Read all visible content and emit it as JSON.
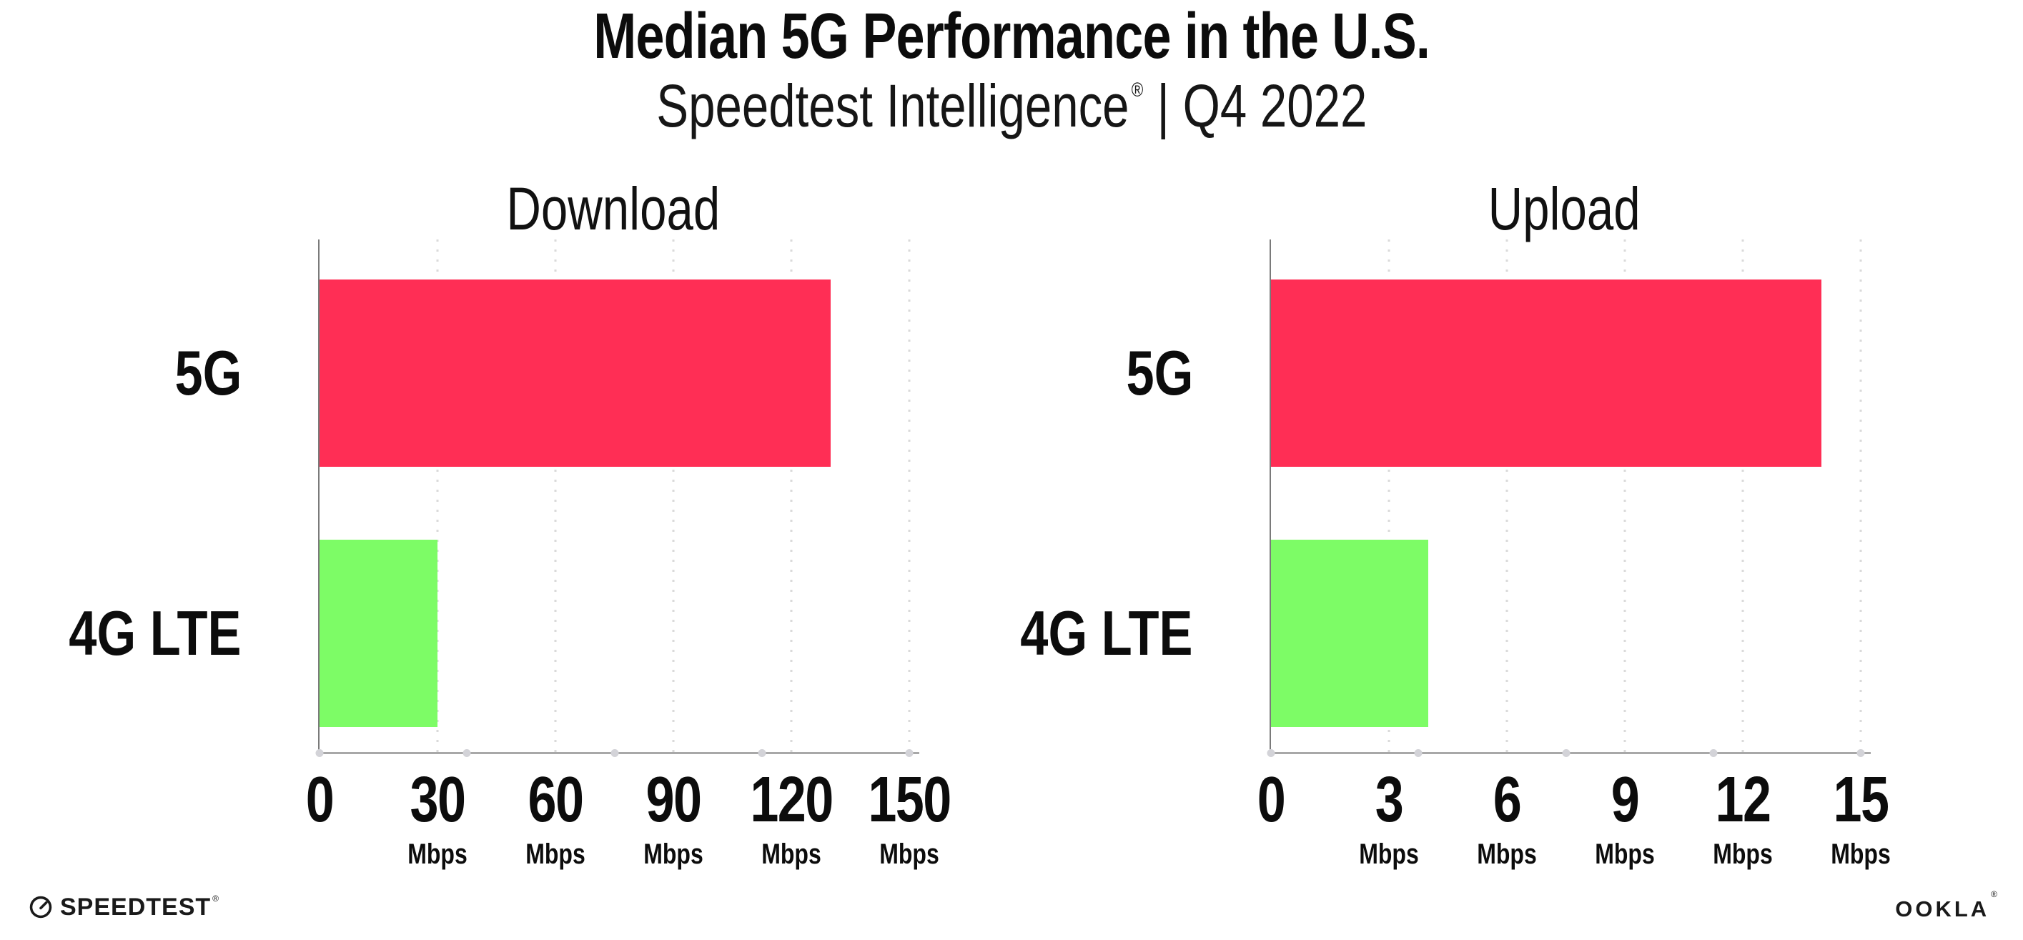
{
  "header": {
    "title": "Median 5G Performance in the U.S.",
    "subtitle_brand": "Speedtest Intelligence",
    "subtitle_reg": "®",
    "subtitle_rest": "| Q4 2022"
  },
  "chart_data": [
    {
      "type": "bar",
      "orientation": "horizontal",
      "title": "Download",
      "categories": [
        "5G",
        "4G LTE"
      ],
      "values": [
        130,
        30
      ],
      "unit": "Mbps",
      "xlabel": "Mbps",
      "xlim": [
        0,
        150
      ],
      "ticks": [
        0,
        30,
        60,
        90,
        120,
        150
      ],
      "grid": "vertical dotted gridlines at each tick",
      "legend": "none",
      "bar_colors": [
        "#ff2e55",
        "#7dfc66"
      ]
    },
    {
      "type": "bar",
      "orientation": "horizontal",
      "title": "Upload",
      "categories": [
        "5G",
        "4G LTE"
      ],
      "values": [
        14,
        4
      ],
      "unit": "Mbps",
      "xlabel": "Mbps",
      "xlim": [
        0,
        15
      ],
      "ticks": [
        0,
        3,
        6,
        9,
        12,
        15
      ],
      "grid": "vertical dotted gridlines at each tick",
      "legend": "none",
      "bar_colors": [
        "#ff2e55",
        "#7dfc66"
      ]
    }
  ],
  "footer": {
    "speedtest_label": "SPEEDTEST",
    "speedtest_mark": "®",
    "ookla_label": "OOKLA",
    "ookla_mark": "®"
  },
  "colors": {
    "bar_5g": "#ff2e55",
    "bar_4g_lte": "#7dfc66",
    "text": "#0c0c0c",
    "gridline": "#dadada",
    "axis_line": "#a8a8a8",
    "background": "#ffffff"
  }
}
